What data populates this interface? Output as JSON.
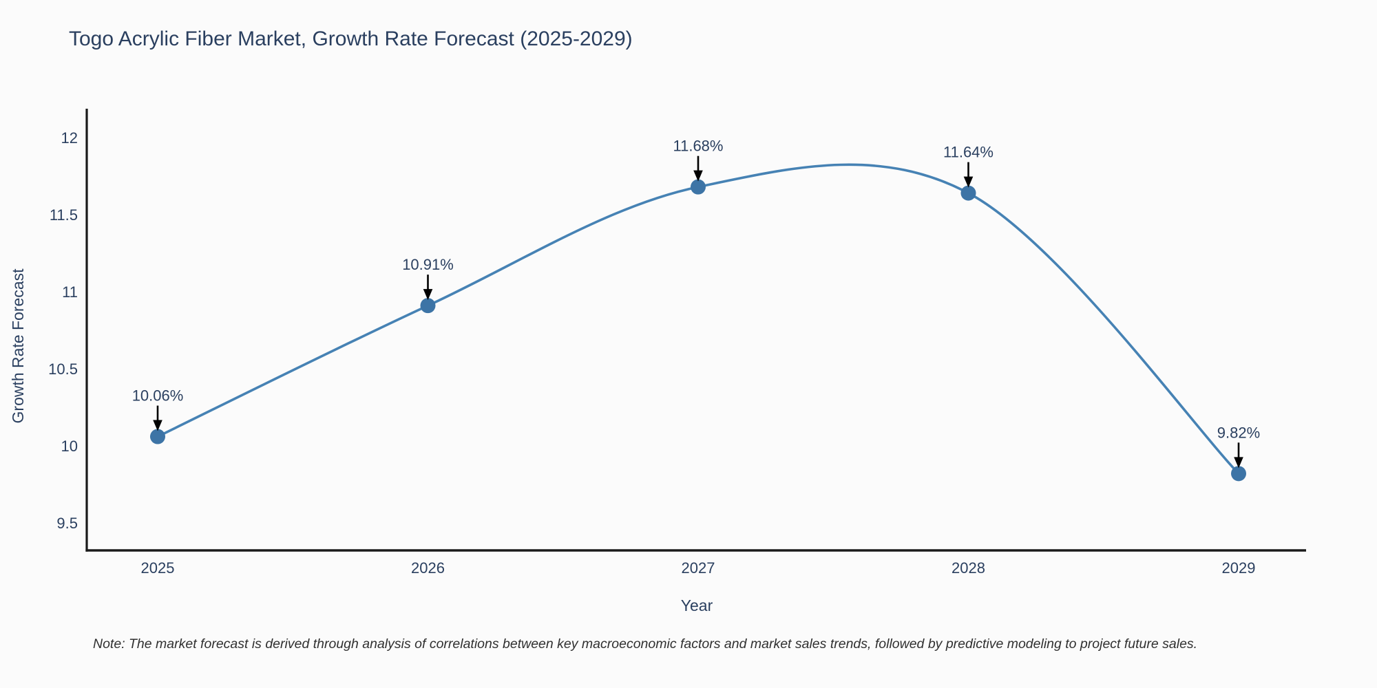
{
  "title": "Togo Acrylic Fiber Market, Growth Rate Forecast (2025-2029)",
  "note": "Note: The market forecast is derived through analysis of correlations between key macroeconomic factors and market sales trends, followed by predictive modeling to project future sales.",
  "chart_data": {
    "type": "line",
    "line_shape": "spline",
    "title": "Togo Acrylic Fiber Market, Growth Rate Forecast (2025-2029)",
    "xlabel": "Year",
    "ylabel": "Growth Rate Forecast",
    "x": [
      2025,
      2026,
      2027,
      2028,
      2029
    ],
    "y": [
      10.06,
      10.91,
      11.68,
      11.64,
      9.82
    ],
    "point_labels": [
      "10.06%",
      "10.91%",
      "11.68%",
      "11.64%",
      "9.82%"
    ],
    "yticks": [
      9.5,
      10,
      10.5,
      11,
      11.5,
      12
    ],
    "ylim": [
      9.33,
      12.18
    ],
    "grid": false,
    "legend": "none",
    "colors": {
      "line": "#4682b4",
      "marker": "#3d74a6",
      "axis": "#1a1a1a",
      "text": "#2a3f5f",
      "arrow": "#000000",
      "note": "#303030",
      "background": "#fbfbfb"
    }
  }
}
